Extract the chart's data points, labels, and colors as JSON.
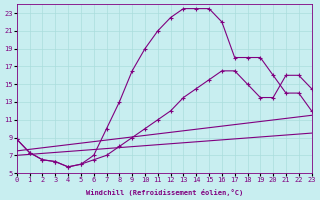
{
  "xlabel": "Windchill (Refroidissement éolien,°C)",
  "bg_color": "#c8eef0",
  "grid_color": "#aadddd",
  "line_color": "#800080",
  "xlim": [
    0,
    23
  ],
  "ylim": [
    5,
    24
  ],
  "xticks": [
    0,
    1,
    2,
    3,
    4,
    5,
    6,
    7,
    8,
    9,
    10,
    11,
    12,
    13,
    14,
    15,
    16,
    17,
    18,
    19,
    20,
    21,
    22,
    23
  ],
  "yticks": [
    5,
    7,
    9,
    11,
    13,
    15,
    17,
    19,
    21,
    23
  ],
  "upper_x": [
    0,
    1,
    2,
    3,
    4,
    5,
    6,
    7,
    8,
    9,
    10,
    11,
    12,
    13,
    14,
    15,
    16,
    17,
    18,
    19,
    20,
    21,
    22,
    23
  ],
  "upper_y": [
    8.8,
    7.3,
    6.5,
    6.3,
    5.7,
    6.0,
    7.0,
    10.0,
    13.0,
    16.5,
    19.0,
    21.0,
    22.5,
    23.5,
    23.5,
    23.5,
    22.0,
    18.0,
    18.0,
    18.0,
    16.0,
    14.0,
    14.0,
    12.0
  ],
  "lower_x": [
    0,
    1,
    2,
    3,
    4,
    5,
    6,
    7,
    8,
    9,
    10,
    11,
    12,
    13,
    14,
    15,
    16,
    17,
    18,
    19,
    20,
    21,
    22,
    23
  ],
  "lower_y": [
    8.8,
    7.3,
    6.5,
    6.3,
    5.7,
    6.0,
    6.5,
    7.0,
    8.0,
    9.0,
    10.0,
    11.0,
    12.0,
    13.5,
    14.5,
    15.5,
    16.5,
    16.5,
    15.0,
    13.5,
    13.5,
    16.0,
    16.0,
    14.5
  ],
  "line1_x": [
    0,
    23
  ],
  "line1_y": [
    7.5,
    11.5
  ],
  "line2_x": [
    0,
    23
  ],
  "line2_y": [
    7.0,
    9.5
  ]
}
